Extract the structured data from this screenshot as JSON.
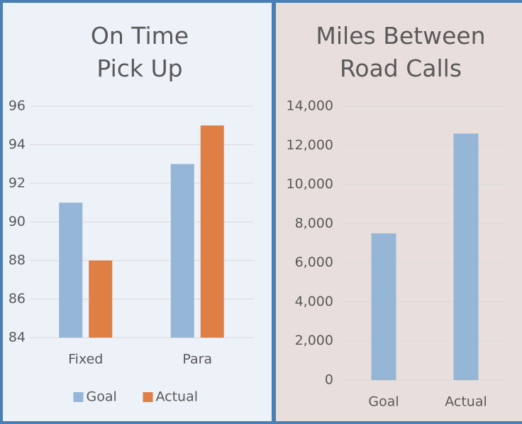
{
  "chart_data": [
    {
      "type": "bar",
      "title": "On Time Pick Up",
      "categories": [
        "Fixed",
        "Para"
      ],
      "series": [
        {
          "name": "Goal",
          "color": "#95b6d6",
          "values": [
            91,
            93
          ]
        },
        {
          "name": "Actual",
          "color": "#e07f45",
          "values": [
            88,
            95
          ]
        }
      ],
      "ylim": [
        84,
        96
      ],
      "yticks": [
        84,
        86,
        88,
        90,
        92,
        94,
        96
      ],
      "grid": true,
      "legend": "bottom"
    },
    {
      "type": "bar",
      "title": "Miles Between Road Calls",
      "categories": [
        "Goal",
        "Actual"
      ],
      "values": [
        7500,
        12600
      ],
      "color": "#95b6d6",
      "ylim": [
        0,
        14000
      ],
      "yticks": [
        0,
        {
          "value": 2000,
          "label": "2,000"
        },
        {
          "value": 4000,
          "label": "4,000"
        },
        {
          "value": 6000,
          "label": "6,000"
        },
        {
          "value": 8000,
          "label": "8,000"
        },
        {
          "value": 10000,
          "label": "10,000"
        },
        {
          "value": 12000,
          "label": "12,000"
        },
        {
          "value": 14000,
          "label": "14,000"
        }
      ],
      "grid": true
    }
  ]
}
